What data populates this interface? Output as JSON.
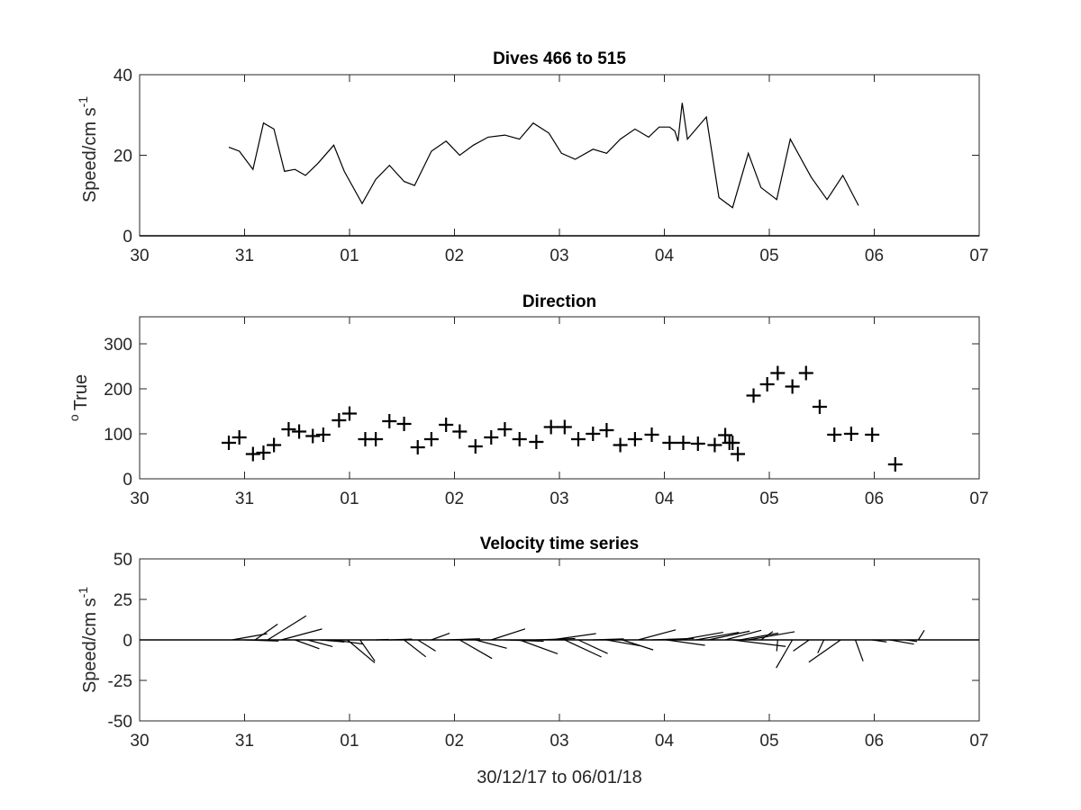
{
  "figure": {
    "xlabel": "30/12/17 to 06/01/18",
    "colors": {
      "axes": "#262626",
      "data": "#000000",
      "background": "#ffffff"
    }
  },
  "chart_data": [
    {
      "type": "line",
      "title": "Dives 466 to 515",
      "ylabel": "Speed/cm s",
      "ylabel_superscript": "-1",
      "xlim": [
        0,
        8
      ],
      "ylim": [
        0,
        40
      ],
      "xticks": [
        0,
        1,
        2,
        3,
        4,
        5,
        6,
        7,
        8
      ],
      "xtick_labels": [
        "30",
        "31",
        "01",
        "02",
        "03",
        "04",
        "05",
        "06",
        "07"
      ],
      "yticks": [
        0,
        20,
        40
      ],
      "ytick_labels": [
        "0",
        "20",
        "40"
      ],
      "grid": false,
      "series": [
        {
          "x": [
            0.85,
            0.95,
            1.08,
            1.18,
            1.28,
            1.38,
            1.48,
            1.58,
            1.7,
            1.85,
            1.95,
            2.12,
            2.25,
            2.38,
            2.52,
            2.62,
            2.78,
            2.92,
            3.05,
            3.18,
            3.32,
            3.48,
            3.62,
            3.75,
            3.9,
            4.02,
            4.15,
            4.32,
            4.45,
            4.58,
            4.72,
            4.85,
            4.95,
            5.05,
            5.1,
            5.13,
            5.17,
            5.22,
            5.4,
            5.52,
            5.65,
            5.8,
            5.92,
            6.07,
            6.2,
            6.4,
            6.55,
            6.7,
            6.85
          ],
          "y": [
            22,
            21,
            16.5,
            28,
            26.5,
            16,
            16.5,
            15,
            18,
            22.5,
            16,
            8,
            14,
            17.5,
            13.5,
            12.5,
            21,
            23.5,
            20,
            22.5,
            24.5,
            25,
            24,
            28,
            25.5,
            20.5,
            19,
            21.5,
            20.5,
            24,
            26.5,
            24.5,
            27,
            27,
            26,
            23.5,
            33,
            24,
            29.5,
            9.5,
            7,
            20.5,
            12,
            9,
            24,
            14.5,
            9,
            15,
            7.5
          ]
        }
      ]
    },
    {
      "type": "scatter",
      "title": "Direction",
      "ylabel": "True",
      "ylabel_prefix_superscript": "o",
      "xlim": [
        0,
        8
      ],
      "ylim": [
        0,
        360
      ],
      "xticks": [
        0,
        1,
        2,
        3,
        4,
        5,
        6,
        7,
        8
      ],
      "xtick_labels": [
        "30",
        "31",
        "01",
        "02",
        "03",
        "04",
        "05",
        "06",
        "07"
      ],
      "yticks": [
        0,
        100,
        200,
        300
      ],
      "ytick_labels": [
        "0",
        "100",
        "200",
        "300"
      ],
      "grid": false,
      "marker": "+",
      "series": [
        {
          "x": [
            0.85,
            0.95,
            1.08,
            1.18,
            1.28,
            1.42,
            1.52,
            1.65,
            1.75,
            1.9,
            2.0,
            2.15,
            2.25,
            2.38,
            2.52,
            2.65,
            2.78,
            2.92,
            3.05,
            3.2,
            3.35,
            3.48,
            3.62,
            3.78,
            3.92,
            4.05,
            4.18,
            4.32,
            4.45,
            4.58,
            4.72,
            4.88,
            5.05,
            5.18,
            5.32,
            5.48,
            5.58,
            5.62,
            5.65,
            5.7,
            5.85,
            5.98,
            6.08,
            6.22,
            6.35,
            6.48,
            6.62,
            6.78,
            6.98,
            7.2
          ],
          "y": [
            80,
            92,
            55,
            58,
            75,
            110,
            105,
            95,
            98,
            130,
            145,
            88,
            88,
            128,
            122,
            70,
            88,
            120,
            105,
            72,
            92,
            110,
            88,
            82,
            115,
            115,
            88,
            100,
            108,
            75,
            88,
            98,
            80,
            80,
            78,
            75,
            97,
            80,
            80,
            55,
            185,
            210,
            235,
            205,
            235,
            160,
            98,
            100,
            98,
            32
          ]
        }
      ]
    },
    {
      "type": "line",
      "title": "Velocity time series",
      "ylabel": "Speed/cm s",
      "ylabel_superscript": "-1",
      "xlim": [
        0,
        8
      ],
      "ylim": [
        -50,
        50
      ],
      "xticks": [
        0,
        1,
        2,
        3,
        4,
        5,
        6,
        7,
        8
      ],
      "xtick_labels": [
        "30",
        "31",
        "01",
        "02",
        "03",
        "04",
        "05",
        "06",
        "07"
      ],
      "yticks": [
        -50,
        -25,
        0,
        25,
        50
      ],
      "ytick_labels": [
        "-50",
        "-25",
        "0",
        "25",
        "50"
      ],
      "grid": false,
      "stick_vectors": {
        "t": [
          0.88,
          1.0,
          1.1,
          1.22,
          1.35,
          1.48,
          1.6,
          1.72,
          1.85,
          1.98,
          2.1,
          2.25,
          2.38,
          2.52,
          2.65,
          2.78,
          2.92,
          3.05,
          3.2,
          3.35,
          3.48,
          3.62,
          3.78,
          3.92,
          4.05,
          4.18,
          4.32,
          4.45,
          4.6,
          4.75,
          4.88,
          5.02,
          5.15,
          5.3,
          5.42,
          5.58,
          5.65,
          5.72,
          5.8,
          5.92,
          6.08,
          6.22,
          6.38,
          6.52,
          6.68,
          6.82,
          6.98,
          7.15,
          7.3,
          7.42
        ],
        "speed": [
          22,
          21,
          17,
          28,
          26,
          16,
          16,
          15,
          18,
          22,
          16,
          8,
          14,
          17,
          13,
          12,
          21,
          23,
          20,
          22,
          24,
          25,
          24,
          28,
          25,
          20,
          19,
          21,
          20,
          24,
          26,
          24,
          27,
          27,
          26,
          23,
          33,
          24,
          29,
          9,
          7,
          20,
          12,
          9,
          24,
          14,
          9,
          15,
          7,
          7
        ],
        "direction": [
          80,
          92,
          55,
          58,
          75,
          110,
          105,
          95,
          98,
          130,
          145,
          88,
          88,
          128,
          122,
          70,
          88,
          120,
          105,
          72,
          92,
          110,
          88,
          82,
          115,
          115,
          88,
          100,
          108,
          75,
          88,
          98,
          80,
          80,
          78,
          75,
          97,
          80,
          80,
          55,
          185,
          210,
          235,
          205,
          235,
          160,
          98,
          100,
          98,
          32
        ]
      }
    }
  ]
}
